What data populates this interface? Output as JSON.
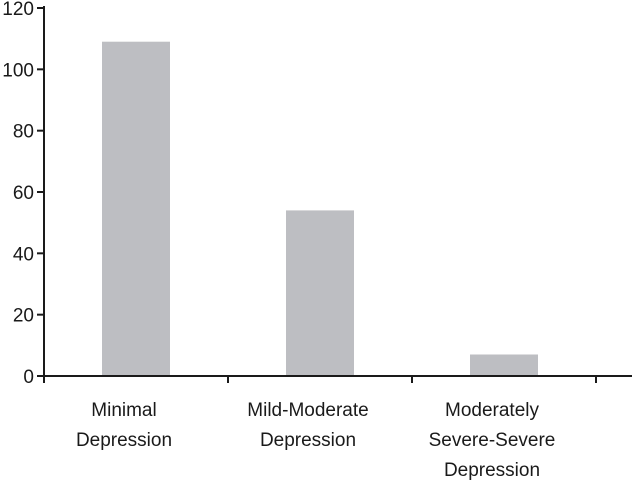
{
  "chart_data": {
    "type": "bar",
    "categories": [
      [
        "Minimal",
        "Depression"
      ],
      [
        "Mild-Moderate",
        "Depression"
      ],
      [
        "Moderately",
        "Severe-Severe",
        "Depression"
      ]
    ],
    "values": [
      109,
      54,
      7
    ],
    "title": "",
    "xlabel": "",
    "ylabel": "",
    "ylim": [
      0,
      120
    ],
    "yticks": [
      0,
      20,
      40,
      60,
      80,
      100,
      120
    ],
    "grid": false,
    "legend": "none",
    "colors": {
      "bar": "#bdbec2",
      "axis": "#1a1a1a",
      "text": "#1a1a1a"
    }
  }
}
